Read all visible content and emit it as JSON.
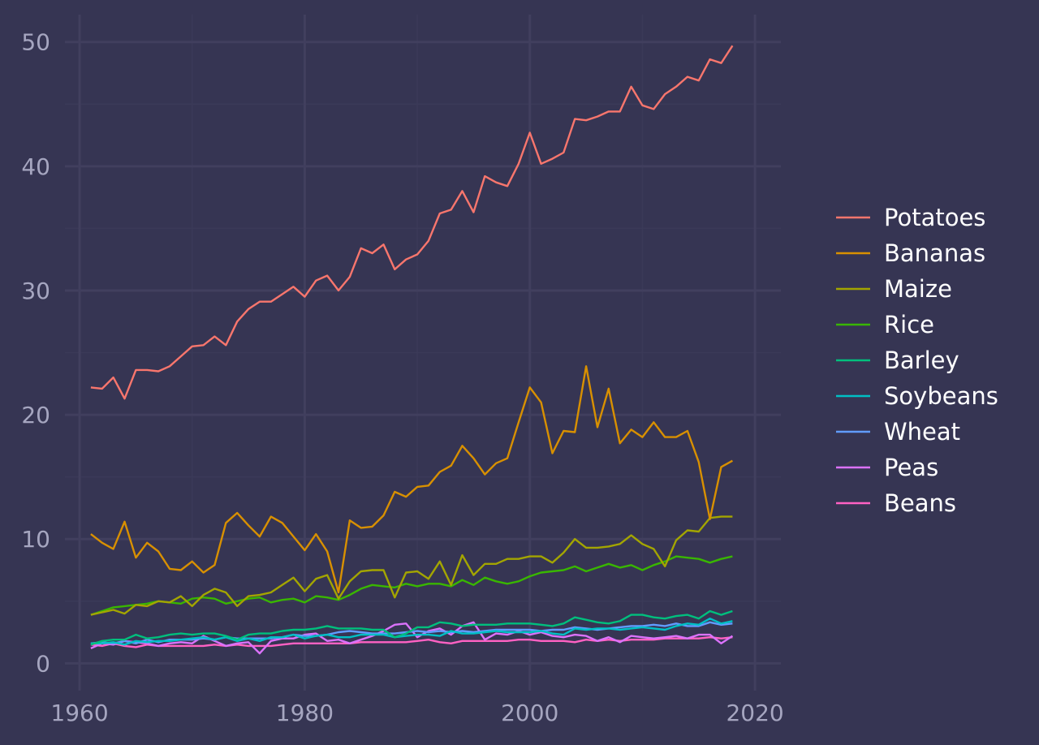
{
  "colors": {
    "background": "#363553",
    "grid_major": "#413f5e",
    "grid_minor": "#3b3a58",
    "tick_text": "#a6a6c0",
    "legend_text": "#ffffff"
  },
  "chart_data": {
    "type": "line",
    "title": "",
    "xlabel": "",
    "ylabel": "",
    "xlim": [
      1958.7,
      2022.3
    ],
    "ylim": [
      -2.2,
      52.2
    ],
    "x_ticks": [
      1960,
      1980,
      2000,
      2020
    ],
    "y_ticks": [
      0,
      10,
      20,
      30,
      40,
      50
    ],
    "grid": true,
    "legend_position": "right",
    "x": [
      1961,
      1962,
      1963,
      1964,
      1965,
      1966,
      1967,
      1968,
      1969,
      1970,
      1971,
      1972,
      1973,
      1974,
      1975,
      1976,
      1977,
      1978,
      1979,
      1980,
      1981,
      1982,
      1983,
      1984,
      1985,
      1986,
      1987,
      1988,
      1989,
      1990,
      1991,
      1992,
      1993,
      1994,
      1995,
      1996,
      1997,
      1998,
      1999,
      2000,
      2001,
      2002,
      2003,
      2004,
      2005,
      2006,
      2007,
      2008,
      2009,
      2010,
      2011,
      2012,
      2013,
      2014,
      2015,
      2016,
      2017,
      2018
    ],
    "series": [
      {
        "name": "Potatoes",
        "color": "#f8766d",
        "values": [
          22.2,
          22.1,
          23.0,
          21.3,
          23.6,
          23.6,
          23.5,
          23.9,
          24.7,
          25.5,
          25.6,
          26.3,
          25.6,
          27.5,
          28.5,
          29.1,
          29.1,
          29.7,
          30.3,
          29.5,
          30.8,
          31.2,
          30.0,
          31.1,
          33.4,
          33.0,
          33.7,
          31.7,
          32.5,
          32.9,
          34.0,
          36.2,
          36.5,
          38.0,
          36.3,
          39.2,
          38.7,
          38.4,
          40.2,
          42.7,
          40.2,
          40.6,
          41.1,
          43.8,
          43.7,
          44.0,
          44.4,
          44.4,
          46.4,
          44.9,
          44.6,
          45.8,
          46.4,
          47.2,
          46.9,
          48.6,
          48.3,
          49.7
        ]
      },
      {
        "name": "Bananas",
        "color": "#d89000",
        "values": [
          10.4,
          9.7,
          9.2,
          11.4,
          8.5,
          9.7,
          9.0,
          7.6,
          7.5,
          8.2,
          7.3,
          7.9,
          11.3,
          12.1,
          11.1,
          10.2,
          11.8,
          11.3,
          10.2,
          9.1,
          10.4,
          9.0,
          5.7,
          11.5,
          10.9,
          11.0,
          11.9,
          13.8,
          13.4,
          14.2,
          14.3,
          15.4,
          15.9,
          17.5,
          16.5,
          15.2,
          16.1,
          16.5,
          19.4,
          22.2,
          21.0,
          16.9,
          18.7,
          18.6,
          23.9,
          19.0,
          22.1,
          17.7,
          18.8,
          18.2,
          19.4,
          18.2,
          18.2,
          18.7,
          16.2,
          11.6,
          15.8,
          16.3
        ]
      },
      {
        "name": "Maize",
        "color": "#a3a500",
        "values": [
          3.9,
          4.1,
          4.3,
          4.0,
          4.7,
          4.6,
          5.0,
          4.9,
          5.4,
          4.6,
          5.5,
          6.0,
          5.7,
          4.6,
          5.4,
          5.5,
          5.7,
          6.3,
          6.9,
          5.8,
          6.8,
          7.1,
          5.2,
          6.6,
          7.4,
          7.5,
          7.5,
          5.3,
          7.3,
          7.4,
          6.8,
          8.2,
          6.3,
          8.7,
          7.1,
          8.0,
          8.0,
          8.4,
          8.4,
          8.6,
          8.6,
          8.1,
          8.9,
          10.0,
          9.3,
          9.3,
          9.4,
          9.6,
          10.3,
          9.6,
          9.2,
          7.8,
          9.9,
          10.7,
          10.6,
          11.7,
          11.8,
          11.8
        ]
      },
      {
        "name": "Rice",
        "color": "#39b600",
        "values": [
          3.9,
          4.2,
          4.5,
          4.6,
          4.7,
          4.8,
          5.0,
          4.9,
          4.8,
          5.2,
          5.3,
          5.2,
          4.8,
          5.0,
          5.2,
          5.3,
          4.9,
          5.1,
          5.2,
          4.9,
          5.4,
          5.3,
          5.1,
          5.5,
          6.0,
          6.3,
          6.2,
          6.1,
          6.4,
          6.2,
          6.4,
          6.4,
          6.2,
          6.7,
          6.3,
          6.9,
          6.6,
          6.4,
          6.6,
          7.0,
          7.3,
          7.4,
          7.5,
          7.8,
          7.4,
          7.7,
          8.0,
          7.7,
          7.9,
          7.5,
          7.9,
          8.2,
          8.6,
          8.5,
          8.4,
          8.1,
          8.4,
          8.6
        ]
      },
      {
        "name": "Barley",
        "color": "#00bf7d",
        "values": [
          1.5,
          1.8,
          1.9,
          1.9,
          2.3,
          2.0,
          2.1,
          2.3,
          2.4,
          2.3,
          2.4,
          2.4,
          2.2,
          1.9,
          2.3,
          2.4,
          2.4,
          2.6,
          2.7,
          2.7,
          2.8,
          3.0,
          2.8,
          2.8,
          2.8,
          2.7,
          2.7,
          2.1,
          2.4,
          2.9,
          2.9,
          3.3,
          3.2,
          3.0,
          3.1,
          3.1,
          3.1,
          3.2,
          3.2,
          3.2,
          3.1,
          3.0,
          3.2,
          3.7,
          3.5,
          3.3,
          3.2,
          3.4,
          3.9,
          3.9,
          3.7,
          3.6,
          3.8,
          3.9,
          3.6,
          4.2,
          3.9,
          4.2
        ]
      },
      {
        "name": "Soybeans",
        "color": "#00bfc4",
        "values": [
          1.6,
          1.6,
          1.7,
          1.5,
          1.8,
          1.7,
          1.8,
          1.8,
          1.9,
          2.0,
          2.1,
          1.9,
          2.1,
          1.8,
          2.0,
          1.8,
          2.1,
          2.1,
          2.3,
          2.0,
          2.2,
          2.3,
          2.1,
          2.1,
          2.3,
          2.3,
          2.3,
          2.1,
          2.2,
          2.3,
          2.3,
          2.2,
          2.6,
          2.4,
          2.4,
          2.5,
          2.6,
          2.5,
          2.5,
          2.5,
          2.6,
          2.4,
          2.3,
          2.8,
          2.7,
          2.8,
          2.8,
          2.7,
          2.8,
          2.9,
          2.8,
          2.7,
          3.0,
          3.2,
          3.1,
          3.6,
          3.2,
          3.4
        ]
      },
      {
        "name": "Wheat",
        "color": "#619cff",
        "values": [
          1.6,
          1.7,
          1.6,
          1.8,
          1.6,
          1.9,
          1.7,
          1.9,
          1.9,
          1.9,
          2.0,
          1.9,
          2.1,
          2.0,
          2.0,
          2.0,
          2.0,
          2.1,
          2.3,
          2.2,
          2.2,
          2.3,
          2.5,
          2.6,
          2.5,
          2.4,
          2.4,
          2.4,
          2.5,
          2.6,
          2.5,
          2.6,
          2.5,
          2.6,
          2.5,
          2.6,
          2.7,
          2.7,
          2.7,
          2.7,
          2.6,
          2.7,
          2.7,
          2.9,
          2.8,
          2.7,
          2.8,
          2.9,
          3.0,
          3.0,
          3.1,
          3.0,
          3.2,
          3.0,
          3.0,
          3.3,
          3.1,
          3.2
        ]
      },
      {
        "name": "Peas",
        "color": "#db72fb",
        "values": [
          1.2,
          1.6,
          1.5,
          1.8,
          1.7,
          1.6,
          1.4,
          1.6,
          1.7,
          1.6,
          2.2,
          1.8,
          1.4,
          1.6,
          1.7,
          0.8,
          1.8,
          2.0,
          2.0,
          2.3,
          2.4,
          1.8,
          1.9,
          1.6,
          1.9,
          2.2,
          2.6,
          3.1,
          3.2,
          2.1,
          2.6,
          2.8,
          2.3,
          3.0,
          3.3,
          1.9,
          2.4,
          2.3,
          2.6,
          2.3,
          2.5,
          2.2,
          2.1,
          2.3,
          2.2,
          1.8,
          2.1,
          1.7,
          2.2,
          2.1,
          2.0,
          2.1,
          2.2,
          2.0,
          2.3,
          2.3,
          1.6,
          2.2
        ]
      },
      {
        "name": "Beans",
        "color": "#ff61c3",
        "values": [
          1.5,
          1.4,
          1.6,
          1.4,
          1.3,
          1.5,
          1.4,
          1.4,
          1.4,
          1.4,
          1.4,
          1.5,
          1.4,
          1.5,
          1.4,
          1.4,
          1.4,
          1.5,
          1.6,
          1.6,
          1.6,
          1.6,
          1.6,
          1.6,
          1.7,
          1.7,
          1.7,
          1.7,
          1.7,
          1.8,
          1.9,
          1.7,
          1.6,
          1.8,
          1.8,
          1.8,
          1.8,
          1.8,
          1.9,
          1.9,
          1.8,
          1.8,
          1.8,
          1.7,
          1.9,
          1.8,
          1.9,
          1.8,
          1.9,
          1.9,
          1.9,
          2.0,
          2.0,
          2.0,
          2.0,
          2.1,
          2.0,
          2.1
        ]
      }
    ]
  }
}
